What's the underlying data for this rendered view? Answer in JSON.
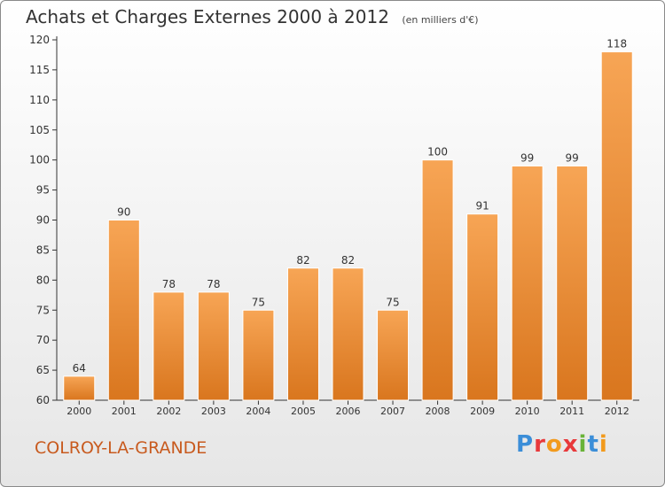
{
  "header": {
    "title": "Achats et Charges Externes 2000 à 2012",
    "unit": "(en milliers d'€)"
  },
  "footer": {
    "commune": "COLROY-LA-GRANDE",
    "logo": "Proxiti"
  },
  "colors": {
    "bar_light": "#f7a555",
    "bar_dark": "#d9761e",
    "axis": "#333333",
    "commune": "#c85a1e",
    "logo_letters": [
      "#3b8ed8",
      "#e8393b",
      "#f29a1c",
      "#e8393b",
      "#69b338",
      "#3b8ed8",
      "#f29a1c"
    ]
  },
  "chart_data": {
    "type": "bar",
    "title": "Achats et Charges Externes 2000 à 2012",
    "subtitle": "(en milliers d'€)",
    "xlabel": "",
    "ylabel": "",
    "categories": [
      "2000",
      "2001",
      "2002",
      "2003",
      "2004",
      "2005",
      "2006",
      "2007",
      "2008",
      "2009",
      "2010",
      "2011",
      "2012"
    ],
    "values": [
      64,
      90,
      78,
      78,
      75,
      82,
      82,
      75,
      100,
      91,
      99,
      99,
      118
    ],
    "ylim": [
      60,
      120
    ],
    "yticks": [
      60,
      65,
      70,
      75,
      80,
      85,
      90,
      95,
      100,
      105,
      110,
      115,
      120
    ],
    "grid": false,
    "data_labels": true
  }
}
